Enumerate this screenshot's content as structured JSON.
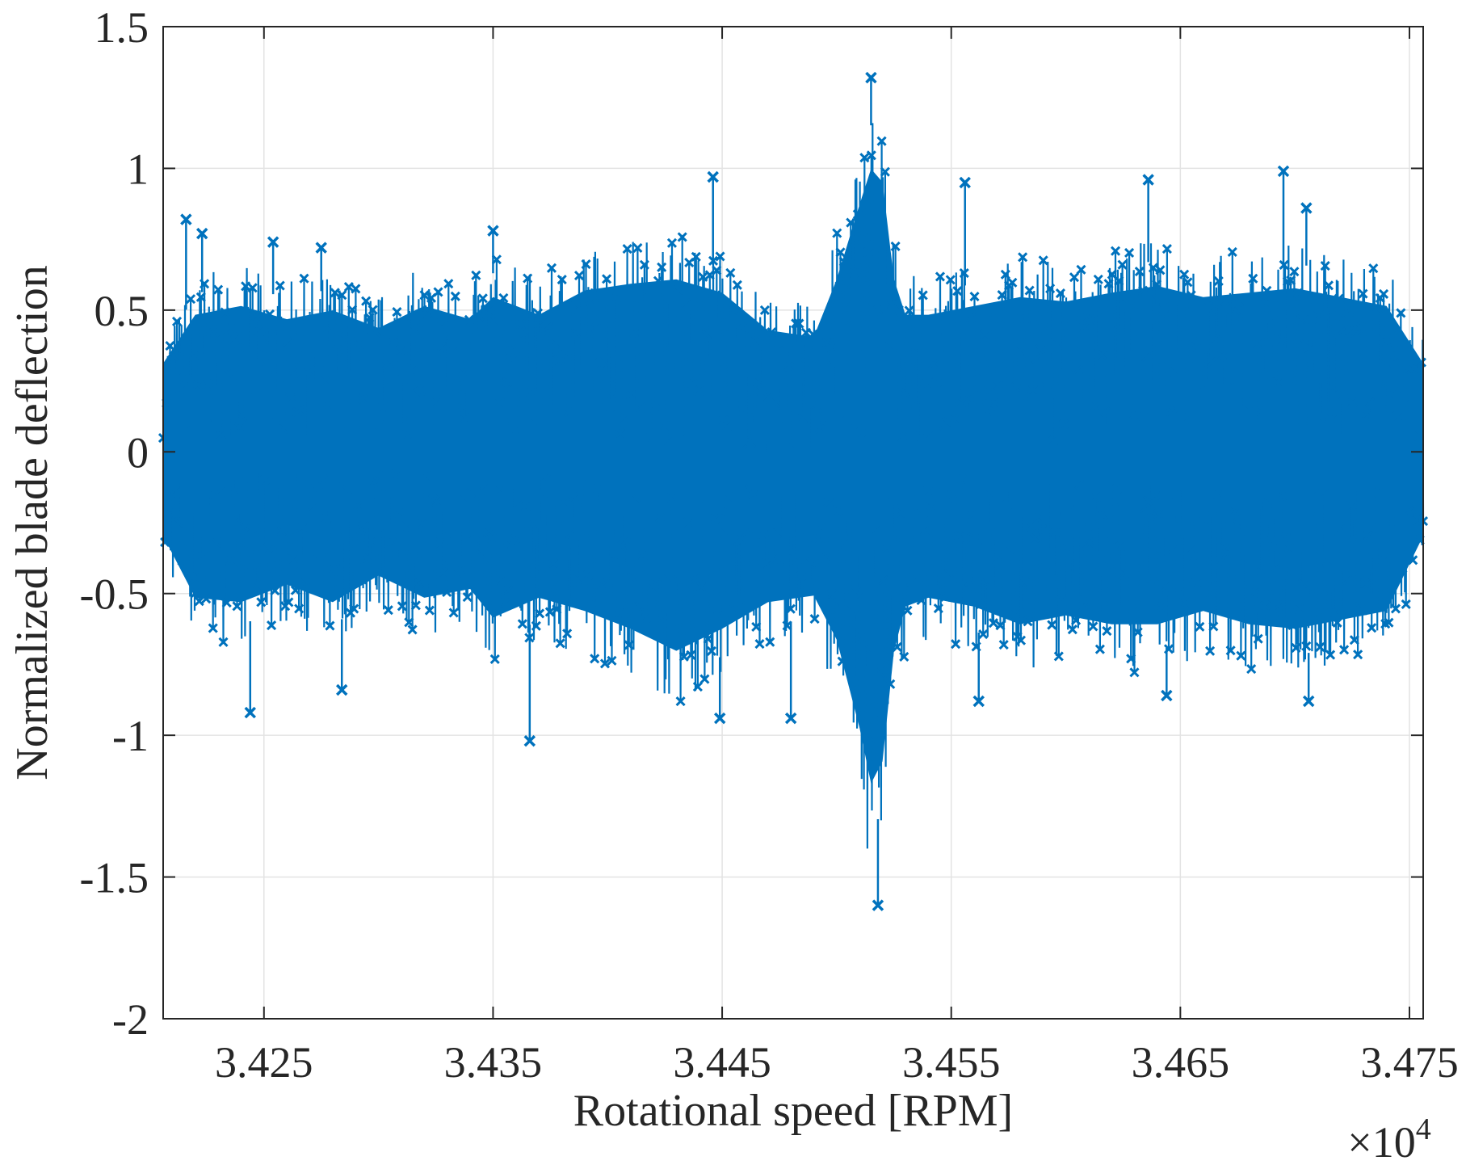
{
  "chart_data": {
    "type": "line",
    "xlabel": "Rotational speed [RPM]",
    "ylabel": "Normalized blade deflection",
    "x_multiplier_label": "×10",
    "x_multiplier_exponent": "4",
    "xlim": [
      34206,
      34756
    ],
    "ylim": [
      -2,
      1.5
    ],
    "x_ticks": [
      34250,
      34350,
      34450,
      34550,
      34650,
      34750
    ],
    "x_tick_labels": [
      "3.425",
      "3.435",
      "3.445",
      "3.455",
      "3.465",
      "3.475"
    ],
    "y_ticks": [
      -2,
      -1.5,
      -1,
      -0.5,
      0,
      0.5,
      1,
      1.5
    ],
    "y_tick_labels": [
      "-2",
      "-1.5",
      "-1",
      "-0.5",
      "0",
      "0.5",
      "1",
      "1.5"
    ],
    "grid": true,
    "marker": "x",
    "color": "#0072BD",
    "data_range": {
      "x": [
        34206,
        34756
      ]
    },
    "envelope": {
      "x": [
        34206,
        34220,
        34240,
        34260,
        34280,
        34300,
        34320,
        34340,
        34350,
        34370,
        34390,
        34410,
        34430,
        34450,
        34470,
        34490,
        34500,
        34510,
        34515,
        34520,
        34525,
        34530,
        34540,
        34560,
        34580,
        34600,
        34620,
        34640,
        34660,
        34680,
        34700,
        34720,
        34740,
        34756
      ],
      "upper": [
        0.4,
        0.62,
        0.66,
        0.6,
        0.64,
        0.56,
        0.66,
        0.6,
        0.7,
        0.62,
        0.73,
        0.76,
        0.78,
        0.72,
        0.55,
        0.52,
        0.78,
        1.12,
        1.28,
        1.22,
        0.78,
        0.62,
        0.62,
        0.66,
        0.7,
        0.68,
        0.72,
        0.75,
        0.7,
        0.72,
        0.74,
        0.7,
        0.66,
        0.4
      ],
      "lower": [
        -0.38,
        -0.66,
        -0.68,
        -0.6,
        -0.68,
        -0.56,
        -0.66,
        -0.62,
        -0.75,
        -0.66,
        -0.72,
        -0.8,
        -0.9,
        -0.8,
        -0.68,
        -0.65,
        -0.85,
        -1.25,
        -1.5,
        -1.4,
        -0.9,
        -0.7,
        -0.66,
        -0.7,
        -0.78,
        -0.74,
        -0.78,
        -0.78,
        -0.72,
        -0.78,
        -0.8,
        -0.76,
        -0.72,
        -0.38
      ]
    },
    "outliers": [
      {
        "x": 34216,
        "y": 0.82
      },
      {
        "x": 34223,
        "y": 0.77
      },
      {
        "x": 34254,
        "y": 0.74
      },
      {
        "x": 34244,
        "y": -0.92
      },
      {
        "x": 34275,
        "y": 0.72
      },
      {
        "x": 34284,
        "y": -0.84
      },
      {
        "x": 34350,
        "y": 0.78
      },
      {
        "x": 34366,
        "y": -1.02
      },
      {
        "x": 34446,
        "y": 0.97
      },
      {
        "x": 34449,
        "y": -0.94
      },
      {
        "x": 34480,
        "y": -0.94
      },
      {
        "x": 34515,
        "y": 1.32
      },
      {
        "x": 34518,
        "y": -1.6
      },
      {
        "x": 34556,
        "y": 0.95
      },
      {
        "x": 34562,
        "y": -0.88
      },
      {
        "x": 34636,
        "y": 0.96
      },
      {
        "x": 34644,
        "y": -0.86
      },
      {
        "x": 34695,
        "y": 0.99
      },
      {
        "x": 34705,
        "y": 0.86
      },
      {
        "x": 34706,
        "y": -0.88
      }
    ]
  }
}
